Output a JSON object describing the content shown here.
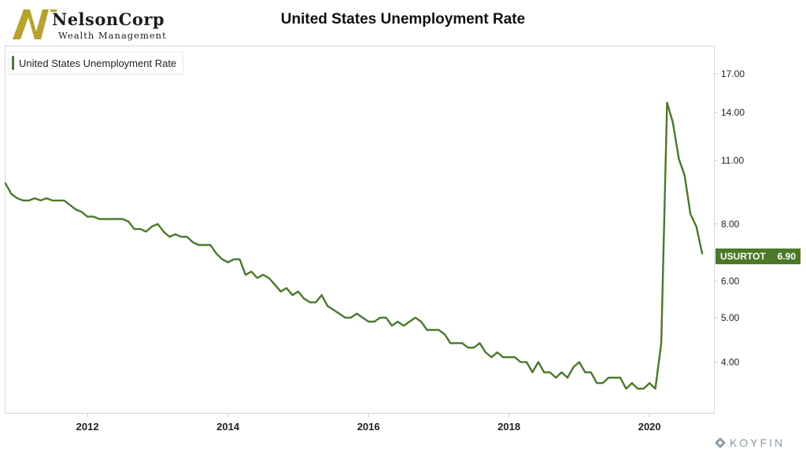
{
  "brand": {
    "name": "NelsonCorp",
    "subtitle": "Wealth Management",
    "logo_color": "#b7a22e"
  },
  "footer": {
    "brand": "KOYFIN",
    "color": "#8a9aa6"
  },
  "chart_data": {
    "type": "line",
    "title": "United States Unemployment Rate",
    "legend": {
      "placement": "top-left",
      "entries": [
        "United States Unemployment Rate"
      ]
    },
    "series": [
      {
        "name": "United States Unemployment Rate",
        "ticker": "USURTOT",
        "color": "#4a7a28",
        "last_value": "6.90",
        "x": [
          "2010-11",
          "2010-12",
          "2011-01",
          "2011-02",
          "2011-03",
          "2011-04",
          "2011-05",
          "2011-06",
          "2011-07",
          "2011-08",
          "2011-09",
          "2011-10",
          "2011-11",
          "2011-12",
          "2012-01",
          "2012-02",
          "2012-03",
          "2012-04",
          "2012-05",
          "2012-06",
          "2012-07",
          "2012-08",
          "2012-09",
          "2012-10",
          "2012-11",
          "2012-12",
          "2013-01",
          "2013-02",
          "2013-03",
          "2013-04",
          "2013-05",
          "2013-06",
          "2013-07",
          "2013-08",
          "2013-09",
          "2013-10",
          "2013-11",
          "2013-12",
          "2014-01",
          "2014-02",
          "2014-03",
          "2014-04",
          "2014-05",
          "2014-06",
          "2014-07",
          "2014-08",
          "2014-09",
          "2014-10",
          "2014-11",
          "2014-12",
          "2015-01",
          "2015-02",
          "2015-03",
          "2015-04",
          "2015-05",
          "2015-06",
          "2015-07",
          "2015-08",
          "2015-09",
          "2015-10",
          "2015-11",
          "2015-12",
          "2016-01",
          "2016-02",
          "2016-03",
          "2016-04",
          "2016-05",
          "2016-06",
          "2016-07",
          "2016-08",
          "2016-09",
          "2016-10",
          "2016-11",
          "2016-12",
          "2017-01",
          "2017-02",
          "2017-03",
          "2017-04",
          "2017-05",
          "2017-06",
          "2017-07",
          "2017-08",
          "2017-09",
          "2017-10",
          "2017-11",
          "2017-12",
          "2018-01",
          "2018-02",
          "2018-03",
          "2018-04",
          "2018-05",
          "2018-06",
          "2018-07",
          "2018-08",
          "2018-09",
          "2018-10",
          "2018-11",
          "2018-12",
          "2019-01",
          "2019-02",
          "2019-03",
          "2019-04",
          "2019-05",
          "2019-06",
          "2019-07",
          "2019-08",
          "2019-09",
          "2019-10",
          "2019-11",
          "2019-12",
          "2020-01",
          "2020-02",
          "2020-03",
          "2020-04",
          "2020-05",
          "2020-06",
          "2020-07",
          "2020-08",
          "2020-09",
          "2020-10"
        ],
        "values": [
          9.8,
          9.3,
          9.1,
          9.0,
          9.0,
          9.1,
          9.0,
          9.1,
          9.0,
          9.0,
          9.0,
          8.8,
          8.6,
          8.5,
          8.3,
          8.3,
          8.2,
          8.2,
          8.2,
          8.2,
          8.2,
          8.1,
          7.8,
          7.8,
          7.7,
          7.9,
          8.0,
          7.7,
          7.5,
          7.6,
          7.5,
          7.5,
          7.3,
          7.2,
          7.2,
          7.2,
          6.9,
          6.7,
          6.6,
          6.7,
          6.7,
          6.2,
          6.3,
          6.1,
          6.2,
          6.1,
          5.9,
          5.7,
          5.8,
          5.6,
          5.7,
          5.5,
          5.4,
          5.4,
          5.6,
          5.3,
          5.2,
          5.1,
          5.0,
          5.0,
          5.1,
          5.0,
          4.9,
          4.9,
          5.0,
          5.0,
          4.8,
          4.9,
          4.8,
          4.9,
          5.0,
          4.9,
          4.7,
          4.7,
          4.7,
          4.6,
          4.4,
          4.4,
          4.4,
          4.3,
          4.3,
          4.4,
          4.2,
          4.1,
          4.2,
          4.1,
          4.1,
          4.1,
          4.0,
          4.0,
          3.8,
          4.0,
          3.8,
          3.8,
          3.7,
          3.8,
          3.7,
          3.9,
          4.0,
          3.8,
          3.8,
          3.6,
          3.6,
          3.7,
          3.7,
          3.7,
          3.5,
          3.6,
          3.5,
          3.5,
          3.6,
          3.5,
          4.4,
          14.7,
          13.3,
          11.1,
          10.2,
          8.4,
          7.9,
          6.9
        ]
      }
    ],
    "x_ticks": [
      "2012",
      "2014",
      "2016",
      "2018",
      "2020"
    ],
    "y_ticks": [
      "4.00",
      "5.00",
      "6.00",
      "8.00",
      "11.00",
      "14.00",
      "17.00"
    ],
    "y_scale": "log",
    "ylim": [
      3.1,
      19.5
    ],
    "xlim": [
      "2010-11",
      "2020-12"
    ],
    "grid": false
  }
}
